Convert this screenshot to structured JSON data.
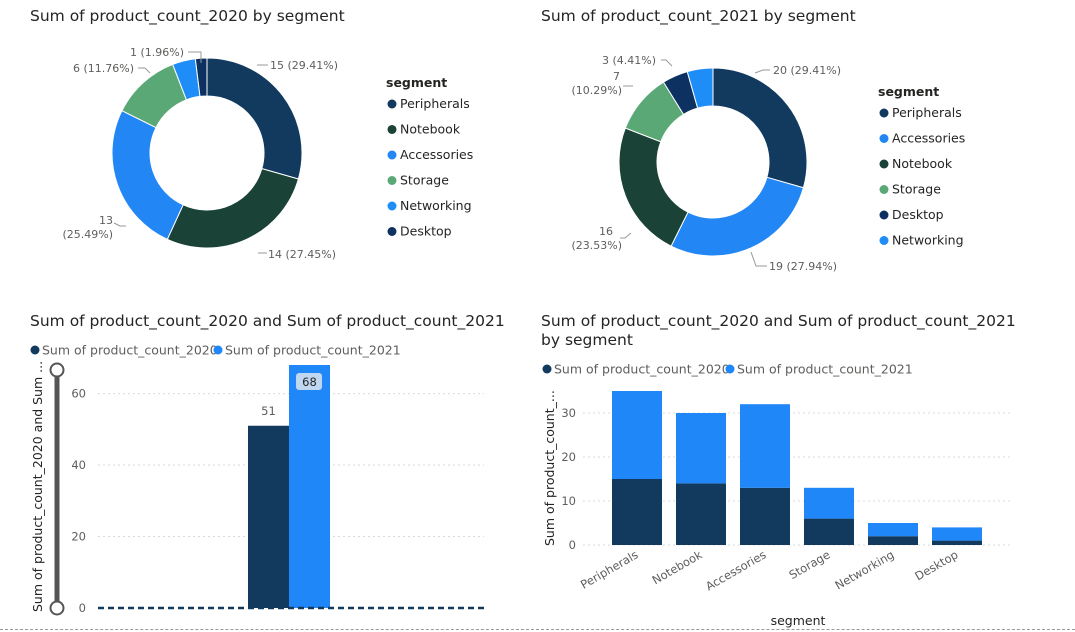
{
  "colors": {
    "peripherals": "#12395e",
    "notebook": "#1a4237",
    "accessories": "#2286f5",
    "storage": "#5ba877",
    "networking": "#1f8df7",
    "desktop": "#0d3160",
    "series_2020": "#12395e",
    "series_2021": "#1f87f8"
  },
  "visuals": {
    "donut2020": {
      "title": "Sum of product_count_2020 by segment",
      "legend_title": "segment",
      "legend": [
        "Peripherals",
        "Notebook",
        "Accessories",
        "Storage",
        "Networking",
        "Desktop"
      ]
    },
    "donut2021": {
      "title": "Sum of product_count_2021 by segment",
      "legend_title": "segment",
      "legend": [
        "Peripherals",
        "Accessories",
        "Notebook",
        "Storage",
        "Desktop",
        "Networking"
      ]
    },
    "totals": {
      "title": "Sum of product_count_2020 and Sum of product_count_2021",
      "legend": [
        "Sum of product_count_2020",
        "Sum of product_count_2021"
      ],
      "ylabel": "Sum of product_count_2020 and Sum ..."
    },
    "stacked": {
      "title_line1": "Sum of product_count_2020 and Sum of product_count_2021",
      "title_line2": "by segment",
      "legend": [
        "Sum of product_count_2020",
        "Sum of product_count_2021"
      ],
      "ylabel": "Sum of product_count_...",
      "xlabel": "segment"
    }
  },
  "chart_data": [
    {
      "type": "pie",
      "donut": true,
      "title": "Sum of product_count_2020 by segment",
      "categories": [
        "Peripherals",
        "Notebook",
        "Accessories",
        "Storage",
        "Networking",
        "Desktop"
      ],
      "values": [
        15,
        14,
        13,
        6,
        2,
        1
      ],
      "labels": [
        "15 (29.41%)",
        "14 (27.45%)",
        "13 (25.49%)",
        "6 (11.76%)",
        "",
        "1 (1.96%)"
      ],
      "legend_position": "right"
    },
    {
      "type": "pie",
      "donut": true,
      "title": "Sum of product_count_2021 by segment",
      "categories": [
        "Peripherals",
        "Accessories",
        "Notebook",
        "Storage",
        "Desktop",
        "Networking"
      ],
      "values": [
        20,
        19,
        16,
        7,
        3,
        3
      ],
      "labels": [
        "20 (29.41%)",
        "19 (27.94%)",
        "16 (23.53%)",
        "7 (10.29%)",
        "3 (4.41%)",
        ""
      ],
      "legend_position": "right"
    },
    {
      "type": "bar",
      "title": "Sum of product_count_2020 and Sum of product_count_2021",
      "series": [
        {
          "name": "Sum of product_count_2020",
          "values": [
            51
          ]
        },
        {
          "name": "Sum of product_count_2021",
          "values": [
            68
          ]
        }
      ],
      "ylabel": "Sum of product_count_2020 and Sum ...",
      "ylim": [
        0,
        68
      ],
      "yticks": [
        0,
        20,
        40,
        60
      ],
      "data_labels": [
        "51",
        "68"
      ],
      "legend_position": "top-left"
    },
    {
      "type": "bar",
      "stacked": true,
      "title": "Sum of product_count_2020 and Sum of product_count_2021 by segment",
      "categories": [
        "Peripherals",
        "Notebook",
        "Accessories",
        "Storage",
        "Networking",
        "Desktop"
      ],
      "series": [
        {
          "name": "Sum of product_count_2020",
          "values": [
            15,
            14,
            13,
            6,
            2,
            1
          ]
        },
        {
          "name": "Sum of product_count_2021",
          "values": [
            20,
            16,
            19,
            7,
            3,
            3
          ]
        }
      ],
      "xlabel": "segment",
      "ylabel": "Sum of product_count_...",
      "ylim": [
        0,
        36
      ],
      "yticks": [
        0,
        10,
        20,
        30
      ],
      "legend_position": "top-left"
    }
  ]
}
